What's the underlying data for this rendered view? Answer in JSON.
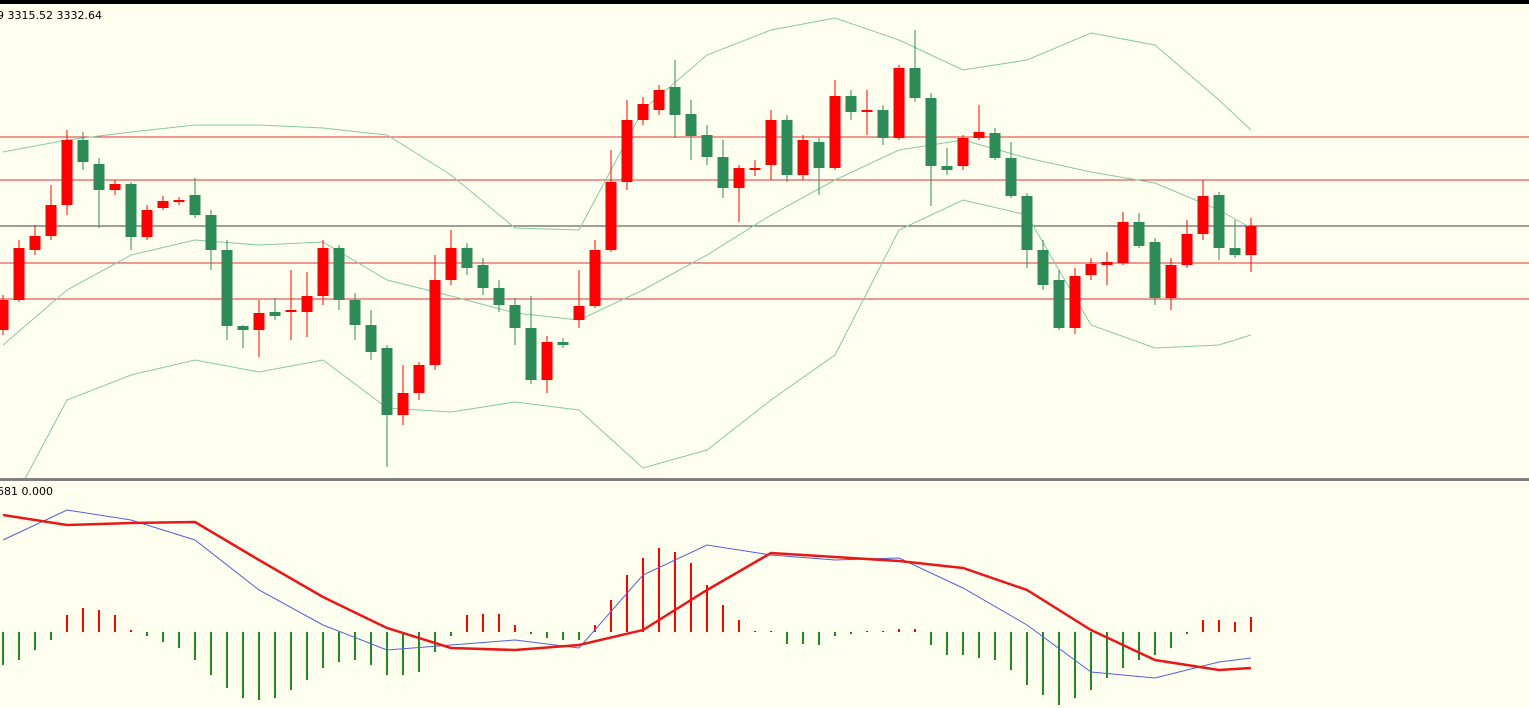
{
  "chart_data": [
    {
      "type": "candlestick",
      "title": "9 3315.52 3332.64",
      "xlim": [
        -0.1875,
        95.375
      ],
      "ylim": [
        3304.4,
        3400
      ],
      "up_color": "#ff0000",
      "down_color": "#2e8b57",
      "open": [
        3334,
        3340,
        3350,
        3352.8,
        3359,
        3372,
        3367.2,
        3362,
        3363.2,
        3352.6,
        3358.4,
        3359.6,
        3361,
        3357,
        3350,
        3334.8,
        3334,
        3337.6,
        3337.6,
        3337.6,
        3340.8,
        3350.4,
        3340,
        3335,
        3330.4,
        3317,
        3321.4,
        3327,
        3344,
        3350.4,
        3347,
        3342.4,
        3339,
        3334.4,
        3324,
        3331.6,
        3336,
        3338.8,
        3350,
        3363.6,
        3376,
        3378,
        3382.6,
        3377.2,
        3373,
        3368.6,
        3362.4,
        3366,
        3367,
        3376,
        3365,
        3371.6,
        3366.4,
        3380.8,
        3377.6,
        3378,
        3372.4,
        3386.4,
        3380.4,
        3366.8,
        3366.8,
        3372.4,
        3373.4,
        3368.4,
        3360.8,
        3350,
        3344,
        3334.4,
        3345,
        3347,
        3347.4,
        3355.6,
        3351.6,
        3340.4,
        3347,
        3353.2,
        3361,
        3350.4,
        3349
      ],
      "high": [
        3341,
        3352,
        3355,
        3363,
        3374,
        3373.6,
        3368.4,
        3364,
        3363.6,
        3359,
        3360.8,
        3360.6,
        3364.4,
        3358,
        3352,
        3335,
        3340,
        3340.4,
        3346,
        3345.6,
        3352,
        3351,
        3341.4,
        3338,
        3331,
        3327,
        3327.6,
        3349,
        3354,
        3351.4,
        3348.4,
        3344,
        3340.4,
        3340.8,
        3332.8,
        3332.4,
        3346,
        3352,
        3370,
        3380,
        3380.6,
        3383,
        3388,
        3380,
        3375,
        3372,
        3367,
        3368,
        3378,
        3377,
        3373,
        3372.4,
        3384,
        3382,
        3382,
        3379,
        3387,
        3394,
        3381.4,
        3370.4,
        3373,
        3379,
        3374.4,
        3371.6,
        3361.4,
        3352,
        3346,
        3346.4,
        3348.4,
        3349.6,
        3357.6,
        3357.4,
        3352.4,
        3348.4,
        3356,
        3364,
        3361.6,
        3356,
        3356.4
      ],
      "low": [
        3333,
        3339.6,
        3349,
        3352,
        3357,
        3366,
        3354.4,
        3361,
        3350,
        3352,
        3358,
        3359,
        3356.4,
        3346,
        3332,
        3330.4,
        3328.6,
        3336,
        3332,
        3332.6,
        3339,
        3338,
        3332,
        3328,
        3306.6,
        3315,
        3320,
        3326,
        3343,
        3345,
        3341,
        3337.6,
        3331,
        3323.2,
        3321.4,
        3330.4,
        3334.4,
        3338.4,
        3349.6,
        3362,
        3375,
        3377,
        3372.4,
        3368,
        3367,
        3360.4,
        3355.6,
        3364.8,
        3364,
        3363.6,
        3364,
        3361,
        3366,
        3376,
        3373,
        3371,
        3372,
        3379.6,
        3358.8,
        3365,
        3366,
        3372,
        3368,
        3360.4,
        3346.4,
        3342,
        3334,
        3333.2,
        3344,
        3343,
        3347,
        3350.4,
        3339,
        3338,
        3346.4,
        3352,
        3348,
        3348.4,
        3345.6
      ],
      "close": [
        3340,
        3350.4,
        3352.8,
        3359,
        3372,
        3367.6,
        3362,
        3363.2,
        3352.6,
        3358,
        3359.8,
        3360,
        3357,
        3350,
        3334.8,
        3334,
        3337.4,
        3336.8,
        3338,
        3340.8,
        3350.4,
        3340,
        3335,
        3329.6,
        3317,
        3321.4,
        3327,
        3344,
        3350.4,
        3346.4,
        3342.4,
        3339,
        3334.4,
        3324,
        3331.6,
        3331,
        3338.8,
        3350,
        3363.6,
        3376,
        3379.2,
        3382,
        3377,
        3372.8,
        3368.6,
        3362.4,
        3366.4,
        3366.4,
        3376,
        3365,
        3372,
        3366.4,
        3380.8,
        3377.6,
        3378,
        3372.4,
        3386.4,
        3380.4,
        3366.8,
        3366,
        3372.4,
        3373.6,
        3368.4,
        3360.8,
        3350,
        3343,
        3334.4,
        3344.8,
        3347.2,
        3347.6,
        3355.6,
        3350.8,
        3340.4,
        3347,
        3353.2,
        3360.8,
        3350.4,
        3349,
        3354.8
      ],
      "overlays": [
        {
          "color": "#86c9a2",
          "x": [
            0,
            4,
            8,
            12,
            16,
            20,
            24,
            28,
            32,
            36,
            40,
            44,
            48,
            52,
            56,
            60,
            64,
            68,
            72,
            76,
            78
          ],
          "values": [
            3369.6,
            3372,
            3373.6,
            3375,
            3375,
            3374.4,
            3373,
            3365,
            3354.4,
            3354,
            3378,
            3389,
            3394,
            3396.4,
            3392,
            3386,
            3388,
            3393.4,
            3391,
            3380,
            3374
          ]
        },
        {
          "color": "#86c9a2",
          "x": [
            0,
            4,
            8,
            12,
            16,
            20,
            24,
            28,
            32,
            36,
            40,
            44,
            48,
            52,
            56,
            60,
            64,
            68,
            72,
            76,
            78
          ],
          "values": [
            3331,
            3342,
            3349,
            3352,
            3351,
            3351.6,
            3344,
            3340.8,
            3337.4,
            3336,
            3342,
            3349,
            3357,
            3364,
            3370,
            3372,
            3368.4,
            3365.6,
            3363.4,
            3358,
            3354.4
          ]
        },
        {
          "color": "#86c9a2",
          "x": [
            0,
            4,
            8,
            12,
            16,
            20,
            24,
            28,
            32,
            36,
            40,
            44,
            48,
            52,
            56,
            60,
            64,
            68,
            72,
            76,
            78
          ],
          "values": [
            3296,
            3320,
            3325,
            3328,
            3325.6,
            3328,
            3318.4,
            3317.6,
            3319.6,
            3318,
            3306.4,
            3310,
            3320,
            3329,
            3354,
            3360,
            3357,
            3335,
            3330.4,
            3331,
            3333
          ]
        }
      ],
      "levels": [
        {
          "value": 3372.6,
          "color": "#e03030"
        },
        {
          "value": 3364,
          "color": "#e03030"
        },
        {
          "value": 3354.8,
          "color": "#404040"
        },
        {
          "value": 3347.4,
          "color": "#e03030"
        },
        {
          "value": 3340.2,
          "color": "#e03030"
        }
      ]
    },
    {
      "type": "macd",
      "title": "681 0.000",
      "xlim": [
        -0.1875,
        95.375
      ],
      "ylim": [
        -7.6,
        15
      ],
      "up_color": "#ff0000",
      "down_color": "#1f8a1f",
      "values": [
        -3.3,
        -2.8,
        -1.8,
        -0.8,
        1.7,
        2.4,
        2.2,
        1.7,
        0.2,
        -0.4,
        -1,
        -1.6,
        -2.8,
        -4.3,
        -5.6,
        -6.6,
        -6.8,
        -6.6,
        -5.8,
        -4.8,
        -3.6,
        -3,
        -2.8,
        -3.3,
        -4.3,
        -4.3,
        -4,
        -2,
        -0.4,
        1.7,
        1.8,
        1.8,
        0.7,
        -0.2,
        -0.6,
        -0.8,
        -0.8,
        0.7,
        3.2,
        5.7,
        7.4,
        8.4,
        8,
        6.9,
        4.7,
        2.7,
        1.2,
        0.1,
        0.1,
        -1.2,
        -1.2,
        -1.3,
        -0.4,
        -0.2,
        0.1,
        0.1,
        0.3,
        0.3,
        -1.3,
        -2.3,
        -2.3,
        -2.6,
        -2.8,
        -3.8,
        -5.3,
        -6.3,
        -7.3,
        -6.6,
        -5.8,
        -4.6,
        -3.6,
        -2.8,
        -2.3,
        -1.6,
        -0.2,
        1.2,
        1.2,
        1,
        1.5
      ],
      "lines": [
        {
          "color": "#4f5fe0",
          "width": 1,
          "x": [
            0,
            4,
            8,
            12,
            16,
            20,
            24,
            28,
            32,
            36,
            40,
            44,
            48,
            52,
            56,
            60,
            64,
            68,
            72,
            76,
            78
          ],
          "values": [
            9.2,
            12.2,
            11.2,
            9.2,
            4.2,
            0.7,
            -1.8,
            -1.3,
            -0.8,
            -1.6,
            5.7,
            8.7,
            7.7,
            7.2,
            7.4,
            4.4,
            0.7,
            -4,
            -4.6,
            -3,
            -2.6
          ]
        },
        {
          "color": "#e81818",
          "width": 2.5,
          "x": [
            0,
            4,
            8,
            12,
            16,
            20,
            24,
            28,
            32,
            36,
            40,
            44,
            48,
            52,
            56,
            60,
            64,
            68,
            72,
            76,
            78
          ],
          "values": [
            11.7,
            10.7,
            10.9,
            11,
            7.2,
            3.5,
            0.4,
            -1.6,
            -1.8,
            -1.3,
            0.2,
            4.2,
            7.9,
            7.5,
            7.1,
            6.4,
            4.2,
            0.2,
            -2.8,
            -3.8,
            -3.6
          ]
        }
      ]
    }
  ]
}
